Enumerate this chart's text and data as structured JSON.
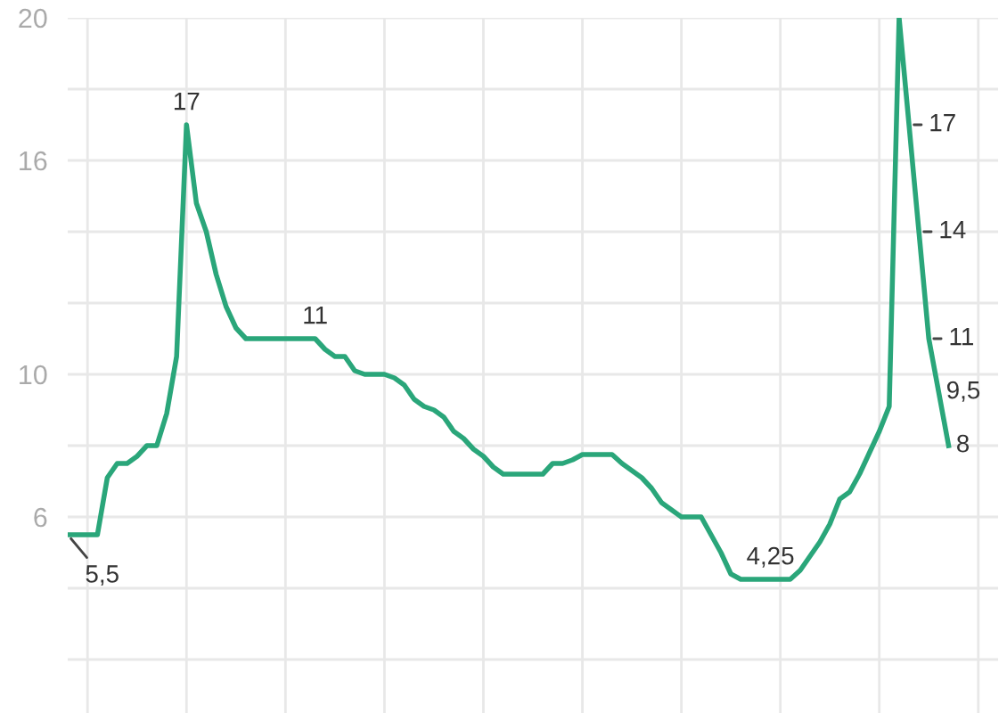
{
  "chart_data": {
    "type": "line",
    "categories": [
      null,
      null,
      null,
      null,
      null,
      null,
      null,
      null,
      null,
      null,
      null,
      null,
      null,
      null,
      null,
      null,
      null,
      null,
      null,
      null,
      null,
      null,
      null,
      null,
      null,
      null,
      null,
      null,
      null,
      null,
      null,
      null,
      null,
      null,
      null,
      null,
      null,
      null,
      null,
      null,
      null,
      null,
      null,
      null,
      null,
      null,
      null,
      null,
      null,
      null,
      null,
      null,
      null,
      null,
      null,
      null,
      null,
      null,
      null,
      null,
      null,
      null,
      null,
      null,
      null,
      null,
      null,
      null,
      null,
      null,
      null,
      null,
      null,
      null,
      null,
      null,
      null,
      null,
      null,
      null,
      null,
      null,
      null,
      null,
      null,
      null,
      null,
      null,
      null,
      null
    ],
    "series": [
      {
        "color": "#2aa67a",
        "values": [
          5.5,
          5.5,
          5.5,
          5.5,
          7.1,
          7.5,
          7.5,
          7.7,
          8,
          8,
          8.9,
          10.5,
          17,
          14.8,
          14,
          12.8,
          11.9,
          11.3,
          11,
          11,
          11,
          11,
          11,
          11,
          11,
          11,
          10.7,
          10.5,
          10.5,
          10.1,
          10,
          10,
          10,
          9.9,
          9.7,
          9.3,
          9.1,
          9,
          8.8,
          8.4,
          8.2,
          7.9,
          7.7,
          7.4,
          7.2,
          7.2,
          7.2,
          7.2,
          7.2,
          7.5,
          7.5,
          7.6,
          7.75,
          7.75,
          7.75,
          7.75,
          7.5,
          7.3,
          7.1,
          6.8,
          6.4,
          6.2,
          6,
          6,
          6,
          5.5,
          5,
          4.4,
          4.25,
          4.25,
          4.25,
          4.25,
          4.25,
          4.25,
          4.5,
          4.9,
          5.3,
          5.8,
          6.5,
          6.7,
          7.2,
          7.8,
          8.4,
          9.1,
          20,
          17,
          14,
          11,
          9.5,
          8
        ],
        "value_labels": [
          "5,5",
          null,
          null,
          null,
          null,
          null,
          null,
          null,
          null,
          null,
          null,
          null,
          "17",
          null,
          null,
          null,
          null,
          null,
          null,
          null,
          null,
          null,
          null,
          null,
          null,
          "11",
          null,
          null,
          null,
          null,
          null,
          null,
          null,
          null,
          null,
          null,
          null,
          null,
          null,
          null,
          null,
          null,
          null,
          null,
          null,
          null,
          null,
          null,
          null,
          null,
          null,
          null,
          null,
          null,
          null,
          null,
          null,
          null,
          null,
          null,
          null,
          null,
          null,
          null,
          null,
          null,
          null,
          null,
          null,
          null,
          null,
          "4,25",
          null,
          null,
          null,
          null,
          null,
          null,
          null,
          null,
          null,
          null,
          null,
          null,
          null,
          "17",
          "14",
          "11",
          "9,5",
          "8"
        ]
      }
    ],
    "ylim": [
      0.5,
      20
    ],
    "yticks": [
      {
        "value": 2,
        "label": null
      },
      {
        "value": 4,
        "label": null
      },
      6,
      {
        "value": 8,
        "label": null
      },
      10,
      {
        "value": 12,
        "label": null
      },
      {
        "value": 14,
        "label": null
      },
      16,
      {
        "value": 18,
        "label": null
      },
      20
    ],
    "grid": true,
    "marker": "none",
    "line_style": "solid"
  }
}
